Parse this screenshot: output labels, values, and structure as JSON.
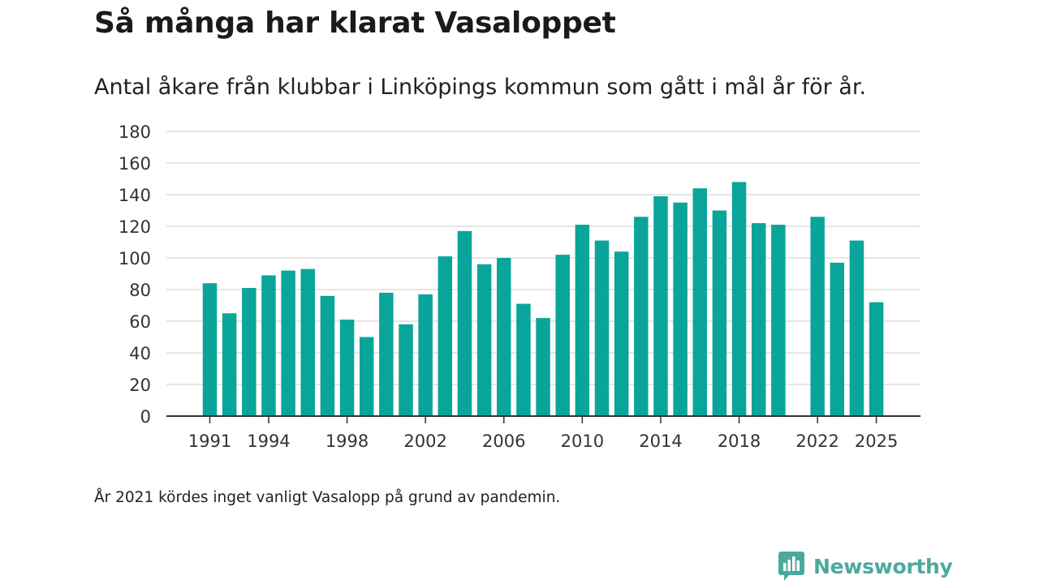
{
  "colors": {
    "bar": "#0aa59a",
    "grid": "#dddddd",
    "axis": "#333333",
    "brand": "#4ba99c"
  },
  "header": {
    "title": "Så många har klarat Vasaloppet",
    "subtitle": "Antal åkare från klubbar i Linköpings kommun som gått i mål år för år."
  },
  "footnote": "År 2021 kördes inget vanligt Vasalopp på grund av pandemin.",
  "brand": {
    "name": "Newsworthy",
    "icon": "newsworthy-logo-icon"
  },
  "chart_data": {
    "type": "bar",
    "title": "Så många har klarat Vasaloppet",
    "xlabel": "",
    "ylabel": "",
    "ylim": [
      0,
      180
    ],
    "yticks": [
      0,
      20,
      40,
      60,
      80,
      100,
      120,
      140,
      160,
      180
    ],
    "xticks": [
      1991,
      1994,
      1998,
      2002,
      2006,
      2010,
      2014,
      2018,
      2022,
      2025
    ],
    "grid": true,
    "categories": [
      1991,
      1992,
      1993,
      1994,
      1995,
      1996,
      1997,
      1998,
      1999,
      2000,
      2001,
      2002,
      2003,
      2004,
      2005,
      2006,
      2007,
      2008,
      2009,
      2010,
      2011,
      2012,
      2013,
      2014,
      2015,
      2016,
      2017,
      2018,
      2019,
      2020,
      2021,
      2022,
      2023,
      2024,
      2025
    ],
    "values": [
      84,
      65,
      81,
      89,
      92,
      93,
      76,
      61,
      50,
      78,
      58,
      77,
      101,
      117,
      96,
      100,
      71,
      62,
      102,
      121,
      111,
      104,
      126,
      139,
      135,
      144,
      130,
      148,
      122,
      121,
      null,
      126,
      97,
      111,
      72
    ]
  }
}
